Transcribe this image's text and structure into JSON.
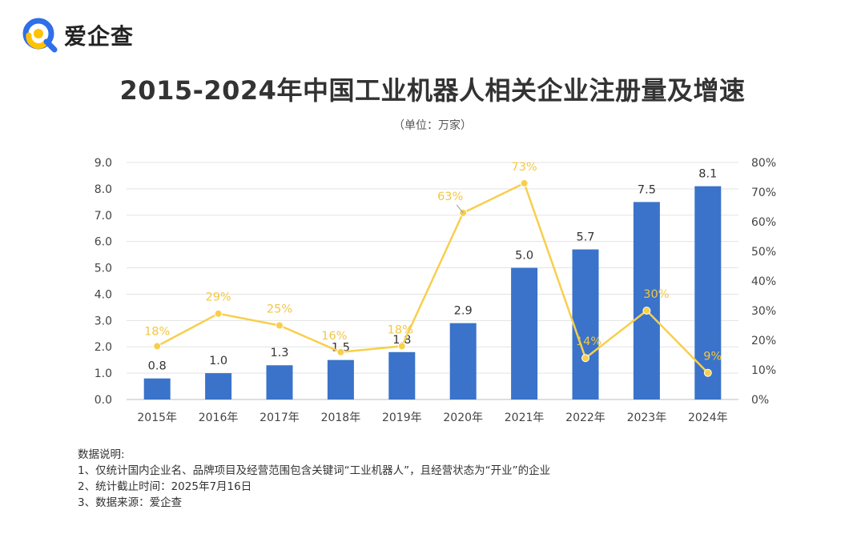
{
  "brand": {
    "name": "爱企查",
    "logo_icon": "search-q-logo-icon"
  },
  "chart_data": {
    "type": "bar+line",
    "title": "2015-2024年中国工业机器人相关企业注册量及增速",
    "subtitle": "（单位：万家）",
    "categories": [
      "2015年",
      "2016年",
      "2017年",
      "2018年",
      "2019年",
      "2020年",
      "2021年",
      "2022年",
      "2023年",
      "2024年"
    ],
    "series": [
      {
        "type": "bar",
        "values": [
          0.8,
          1.0,
          1.3,
          1.5,
          1.8,
          2.9,
          5.0,
          5.7,
          7.5,
          8.1
        ],
        "value_labels": [
          "0.8",
          "1.0",
          "1.3",
          "1.5",
          "1.8",
          "2.9",
          "5.0",
          "5.7",
          "7.5",
          "8.1"
        ],
        "color": "#3a73c9"
      },
      {
        "type": "line",
        "values": [
          18,
          29,
          25,
          16,
          18,
          63,
          73,
          14,
          30,
          9
        ],
        "value_labels": [
          "18%",
          "29%",
          "25%",
          "16%",
          "18%",
          "63%",
          "73%",
          "14%",
          "30%",
          "9%"
        ],
        "color": "#f7cf4d"
      }
    ],
    "y_left": {
      "min": 0,
      "max": 9,
      "step": 1,
      "tick_labels": [
        "0.0",
        "1.0",
        "2.0",
        "3.0",
        "4.0",
        "5.0",
        "6.0",
        "7.0",
        "8.0",
        "9.0"
      ]
    },
    "y_right": {
      "min": 0,
      "max": 80,
      "step": 10,
      "tick_labels": [
        "0%",
        "10%",
        "20%",
        "30%",
        "40%",
        "50%",
        "60%",
        "70%",
        "80%"
      ]
    },
    "grid": true,
    "legend": "none"
  },
  "notes": {
    "heading": "数据说明:",
    "lines": [
      "1、仅统计国内企业名、品牌项目及经营范围包含关键词“工业机器人”，且经营状态为“开业”的企业",
      "2、统计截止时间：2025年7月16日",
      "3、数据来源：爱企查"
    ]
  }
}
